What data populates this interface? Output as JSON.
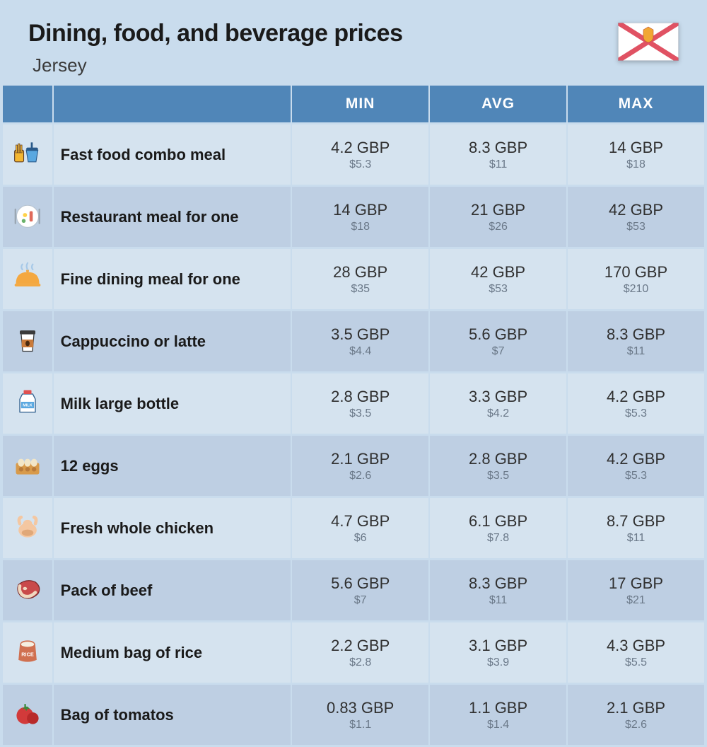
{
  "header": {
    "title": "Dining, food, and beverage prices",
    "subtitle": "Jersey"
  },
  "flag": {
    "bg": "#ffffff",
    "cross": "#e05263",
    "shield_bg": "#ffffff",
    "shield_crest": "#f1a733",
    "shield_lions": "#d4af37"
  },
  "columns": {
    "min": "MIN",
    "avg": "AVG",
    "max": "MAX"
  },
  "colors": {
    "page_bg": "#c9dced",
    "header_bg": "#5086b8",
    "row_light": "#d5e3ef",
    "row_dark": "#becfe3",
    "price_main": "#303030",
    "price_sub": "#6a7888",
    "label_text": "#1a1a1a"
  },
  "rows": [
    {
      "icon": "fastfood",
      "label": "Fast food combo meal",
      "min": {
        "gbp": "4.2 GBP",
        "usd": "$5.3"
      },
      "avg": {
        "gbp": "8.3 GBP",
        "usd": "$11"
      },
      "max": {
        "gbp": "14 GBP",
        "usd": "$18"
      }
    },
    {
      "icon": "plate",
      "label": "Restaurant meal for one",
      "min": {
        "gbp": "14 GBP",
        "usd": "$18"
      },
      "avg": {
        "gbp": "21 GBP",
        "usd": "$26"
      },
      "max": {
        "gbp": "42 GBP",
        "usd": "$53"
      }
    },
    {
      "icon": "cloche",
      "label": "Fine dining meal for one",
      "min": {
        "gbp": "28 GBP",
        "usd": "$35"
      },
      "avg": {
        "gbp": "42 GBP",
        "usd": "$53"
      },
      "max": {
        "gbp": "170 GBP",
        "usd": "$210"
      }
    },
    {
      "icon": "coffee",
      "label": "Cappuccino or latte",
      "min": {
        "gbp": "3.5 GBP",
        "usd": "$4.4"
      },
      "avg": {
        "gbp": "5.6 GBP",
        "usd": "$7"
      },
      "max": {
        "gbp": "8.3 GBP",
        "usd": "$11"
      }
    },
    {
      "icon": "milk",
      "label": "Milk large bottle",
      "min": {
        "gbp": "2.8 GBP",
        "usd": "$3.5"
      },
      "avg": {
        "gbp": "3.3 GBP",
        "usd": "$4.2"
      },
      "max": {
        "gbp": "4.2 GBP",
        "usd": "$5.3"
      }
    },
    {
      "icon": "eggs",
      "label": "12 eggs",
      "min": {
        "gbp": "2.1 GBP",
        "usd": "$2.6"
      },
      "avg": {
        "gbp": "2.8 GBP",
        "usd": "$3.5"
      },
      "max": {
        "gbp": "4.2 GBP",
        "usd": "$5.3"
      }
    },
    {
      "icon": "chicken",
      "label": "Fresh whole chicken",
      "min": {
        "gbp": "4.7 GBP",
        "usd": "$6"
      },
      "avg": {
        "gbp": "6.1 GBP",
        "usd": "$7.8"
      },
      "max": {
        "gbp": "8.7 GBP",
        "usd": "$11"
      }
    },
    {
      "icon": "beef",
      "label": "Pack of beef",
      "min": {
        "gbp": "5.6 GBP",
        "usd": "$7"
      },
      "avg": {
        "gbp": "8.3 GBP",
        "usd": "$11"
      },
      "max": {
        "gbp": "17 GBP",
        "usd": "$21"
      }
    },
    {
      "icon": "rice",
      "label": "Medium bag of rice",
      "min": {
        "gbp": "2.2 GBP",
        "usd": "$2.8"
      },
      "avg": {
        "gbp": "3.1 GBP",
        "usd": "$3.9"
      },
      "max": {
        "gbp": "4.3 GBP",
        "usd": "$5.5"
      }
    },
    {
      "icon": "tomato",
      "label": "Bag of tomatos",
      "min": {
        "gbp": "0.83 GBP",
        "usd": "$1.1"
      },
      "avg": {
        "gbp": "1.1 GBP",
        "usd": "$1.4"
      },
      "max": {
        "gbp": "2.1 GBP",
        "usd": "$2.6"
      }
    }
  ],
  "icons": {
    "fastfood": {
      "fries": "#f4b731",
      "cup": "#5aa8e0",
      "burger": "#5c3a21"
    },
    "plate": {
      "plate": "#ffffff",
      "egg": "#ffd24a",
      "bacon": "#e06a5a",
      "greens": "#6bb26b"
    },
    "cloche": {
      "dome": "#f4a840",
      "steam": "#a7c9e8"
    },
    "coffee": {
      "cup": "#ffffff",
      "lid": "#3a3a3a",
      "sleeve": "#c97a3a",
      "bean": "#4a2a10"
    },
    "milk": {
      "body": "#ffffff",
      "cap": "#e05050",
      "label": "#5aa8e0"
    },
    "eggs": {
      "carton": "#d89a4a",
      "eggs": "#f2e6c8"
    },
    "chicken": {
      "body": "#f4c7a1",
      "shadow": "#e0a878"
    },
    "beef": {
      "meat": "#c94a4a",
      "fat": "#f0d8c0"
    },
    "rice": {
      "bag": "#d07050",
      "rice": "#f5efe0"
    },
    "tomato": {
      "body": "#d23a3a",
      "stem": "#3a8a3a"
    }
  }
}
